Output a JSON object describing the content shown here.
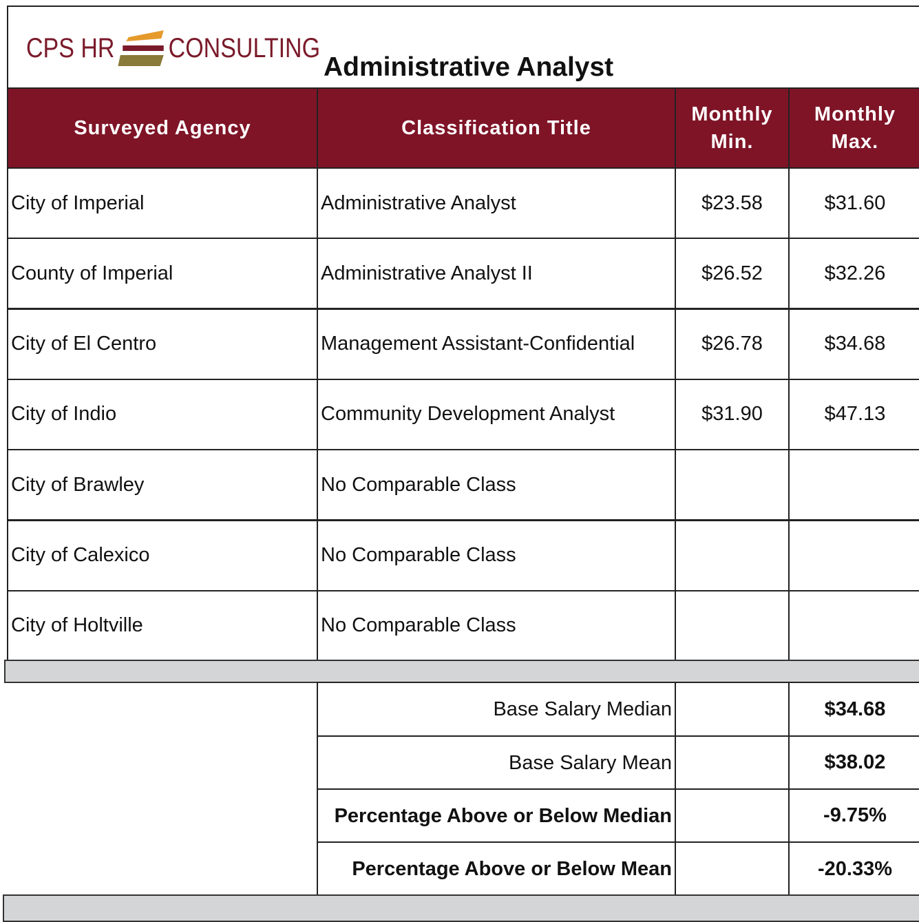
{
  "header": {
    "logo": {
      "left": "CPS HR",
      "right": "CONSULTING"
    },
    "title": "Administrative Analyst"
  },
  "table": {
    "columns": [
      "Surveyed Agency",
      "Classification Title",
      "Monthly Min.",
      "Monthly Max."
    ],
    "rows": [
      [
        "City of Imperial",
        "Administrative Analyst",
        "$23.58",
        "$31.60"
      ],
      [
        "County of Imperial",
        "Administrative Analyst II",
        "$26.52",
        "$32.26"
      ],
      [
        "City of El Centro",
        "Management Assistant-Confidential",
        "$26.78",
        "$34.68"
      ],
      [
        "City of Indio",
        "Community Development Analyst",
        "$31.90",
        "$47.13"
      ],
      [
        "City of Brawley",
        "No Comparable Class"
      ],
      [
        "City of Calexico",
        "No Comparable Class"
      ],
      [
        "City of Holtville",
        "No Comparable Class"
      ]
    ]
  },
  "summary": [
    {
      "label": "Base Salary Median",
      "value": "$34.68"
    },
    {
      "label": "Base Salary Mean",
      "value": "$38.02"
    },
    {
      "label": "Percentage Above or Below Median",
      "value": "-9.75%"
    },
    {
      "label": "Percentage Above or Below Mean",
      "value": "-20.33%"
    }
  ]
}
